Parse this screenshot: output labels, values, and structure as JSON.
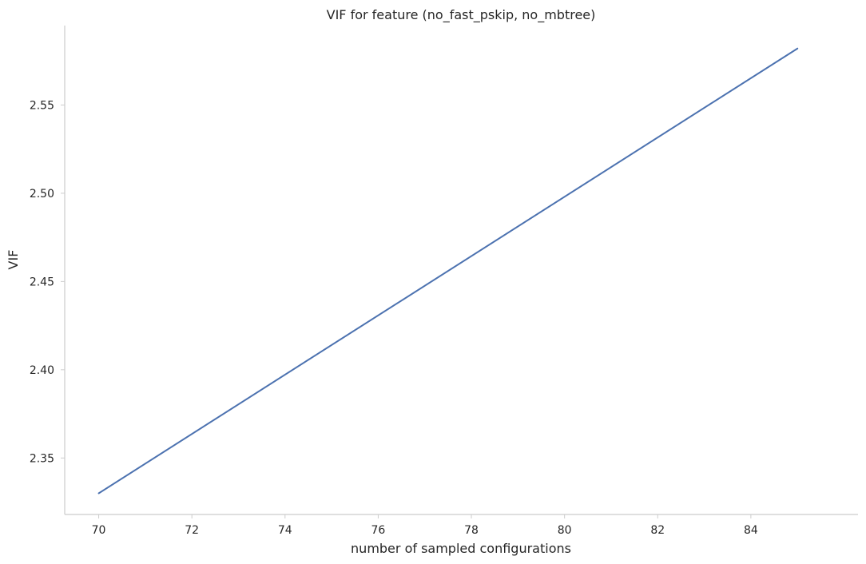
{
  "chart_data": {
    "type": "line",
    "title": "VIF for feature (no_fast_pskip, no_mbtree)",
    "xlabel": "number of sampled configurations",
    "ylabel": "VIF",
    "xlim": [
      69.27,
      86.3
    ],
    "ylim": [
      2.318,
      2.595
    ],
    "x_ticks": [
      70,
      72,
      74,
      76,
      78,
      80,
      82,
      84
    ],
    "y_ticks": [
      2.35,
      2.4,
      2.45,
      2.5,
      2.55
    ],
    "y_tick_labels": [
      "2.35",
      "2.40",
      "2.45",
      "2.50",
      "2.55"
    ],
    "grid": false,
    "series": [
      {
        "color": "#4c72b0",
        "x": [
          70,
          85
        ],
        "y": [
          2.33,
          2.582
        ]
      }
    ]
  }
}
